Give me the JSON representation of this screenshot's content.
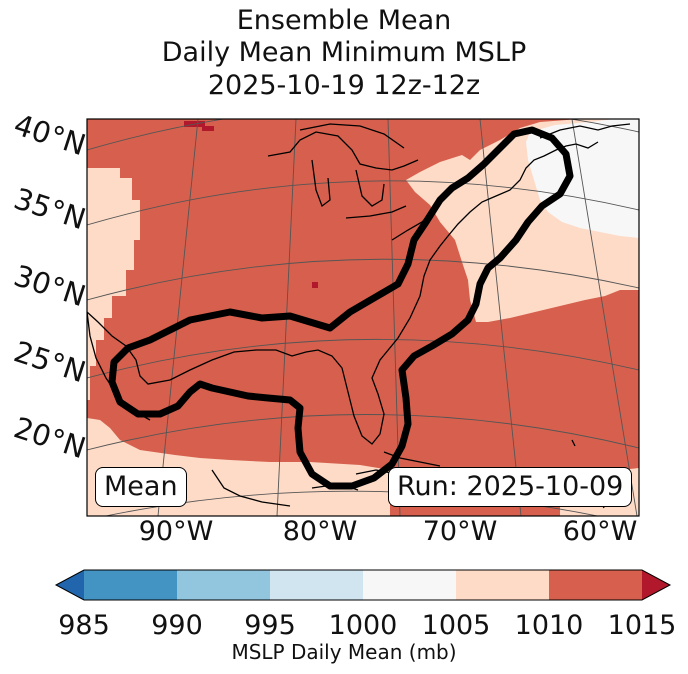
{
  "title": {
    "line1": "Ensemble Mean",
    "line2": "Daily Mean Minimum MSLP",
    "line3": "2025-10-19 12z-12z"
  },
  "map": {
    "lat_labels": [
      "40°N",
      "35°N",
      "30°N",
      "25°N",
      "20°N"
    ],
    "lon_labels": [
      "90°W",
      "80°W",
      "70°W",
      "60°W"
    ],
    "mean_box": "Mean",
    "run_box": "Run: 2025-10-09"
  },
  "colorbar": {
    "label": "MSLP Daily Mean (mb)",
    "ticks": [
      "985",
      "990",
      "995",
      "1000",
      "1005",
      "1010",
      "1015"
    ],
    "colors": {
      "under": "#2166ac",
      "c985_990": "#4393c3",
      "c990_995": "#92c5de",
      "c995_1000": "#d1e5f0",
      "c1000_1005": "#f7f7f7",
      "c1005_1010": "#fddbc7",
      "c1010_1015": "#d6604d",
      "over": "#b2182b"
    }
  }
}
